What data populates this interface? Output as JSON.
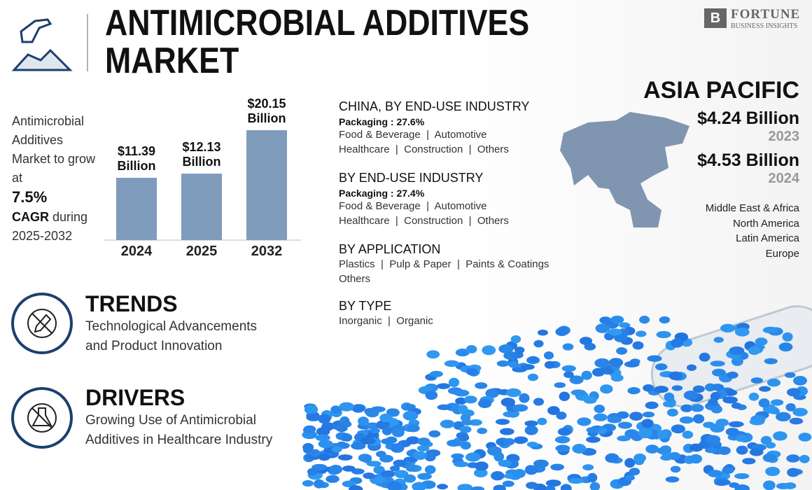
{
  "header": {
    "title_lines": [
      "ANTIMICROBIAL ADDITIVES",
      "MARKET"
    ]
  },
  "logo": {
    "brand": "FORTUNE",
    "tagline": "BUSINESS INSIGHTS"
  },
  "growth": {
    "lead": "Antimicrobial Additives Market to grow at",
    "rate": "7.5%",
    "metric": "CAGR",
    "tail": "during 2025-2032"
  },
  "chart_data": {
    "type": "bar",
    "categories": [
      "2024",
      "2025",
      "2032"
    ],
    "values": [
      11.39,
      12.13,
      20.15
    ],
    "value_labels": [
      "$11.39 Billion",
      "$12.13 Billion",
      "$20.15 Billion"
    ],
    "color": "#7f9cbd"
  },
  "trends": {
    "heading": "TRENDS",
    "text_lines": [
      "Technological Advancements",
      "and Product Innovation"
    ]
  },
  "drivers": {
    "heading": "DRIVERS",
    "text_lines": [
      "Growing Use of Antimicrobial",
      "Additives in Healthcare Industry"
    ]
  },
  "segments": [
    {
      "heading": "CHINA, BY END-USE INDUSTRY",
      "highlight": "Packaging : 27.6%",
      "lines": [
        "Food & Beverage  |  Automotive",
        "Healthcare  |  Construction  |  Others"
      ]
    },
    {
      "heading": "BY END-USE INDUSTRY",
      "highlight": "Packaging : 27.4%",
      "lines": [
        "Food & Beverage  |  Automotive",
        "Healthcare  |  Construction  |  Others"
      ]
    },
    {
      "heading": "BY APPLICATION",
      "lines": [
        "Plastics  |  Pulp & Paper  |  Paints & Coatings",
        "Others"
      ]
    },
    {
      "heading": "BY TYPE",
      "lines": [
        "Inorganic  |  Organic"
      ]
    }
  ],
  "region": {
    "name": "ASIA PACIFIC",
    "figures": [
      {
        "amount": "$4.24 Billion",
        "year": "2023"
      },
      {
        "amount": "$4.53 Billion",
        "year": "2024"
      }
    ],
    "others": [
      "Middle East & Africa",
      "North America",
      "Latin America",
      "Europe"
    ]
  }
}
